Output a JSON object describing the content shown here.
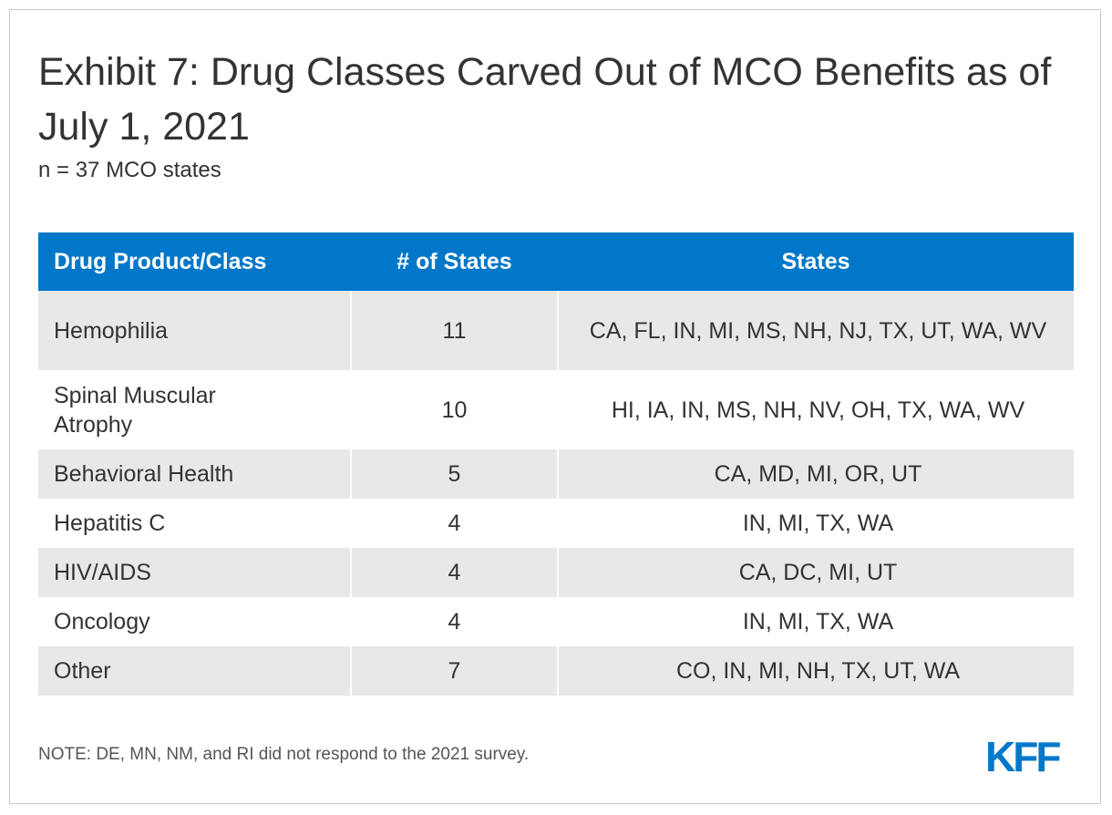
{
  "title": "Exhibit 7: Drug Classes Carved Out of MCO Benefits as of July 1, 2021",
  "subtitle": "n = 37 MCO states",
  "note": "NOTE: DE, MN, NM, and RI did not respond to the 2021 survey.",
  "logo_text": "KFF",
  "colors": {
    "header_bg": "#0077c8",
    "row_shade": "#e8e8e8",
    "logo": "#0077c8"
  },
  "chart_data": {
    "type": "table",
    "columns": [
      "Drug Product/Class",
      "# of States",
      "States"
    ],
    "rows": [
      {
        "class": "Hemophilia",
        "count": "11",
        "states": "CA, FL, IN, MI, MS, NH, NJ, TX, UT, WA, WV"
      },
      {
        "class": "Spinal Muscular Atrophy",
        "count": "10",
        "states": "HI, IA, IN, MS, NH, NV, OH, TX, WA, WV"
      },
      {
        "class": "Behavioral Health",
        "count": "5",
        "states": "CA, MD, MI, OR, UT"
      },
      {
        "class": "Hepatitis C",
        "count": "4",
        "states": "IN, MI, TX, WA"
      },
      {
        "class": "HIV/AIDS",
        "count": "4",
        "states": "CA, DC, MI, UT"
      },
      {
        "class": "Oncology",
        "count": "4",
        "states": "IN, MI, TX, WA"
      },
      {
        "class": "Other",
        "count": "7",
        "states": "CO, IN, MI, NH, TX, UT, WA"
      }
    ]
  }
}
